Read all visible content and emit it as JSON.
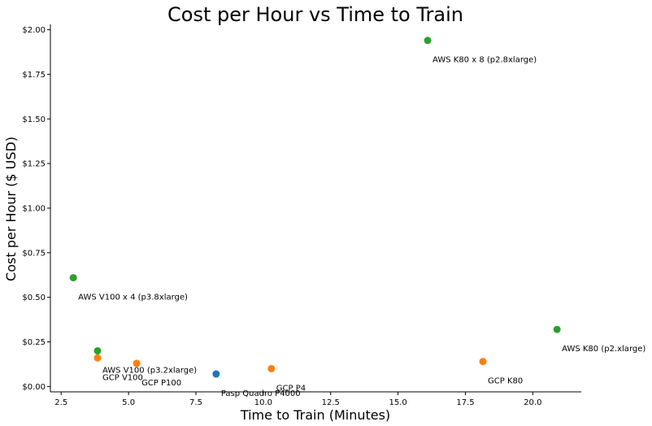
{
  "chart_data": {
    "type": "scatter",
    "title": "Cost per Hour vs Time to Train",
    "xlabel": "Time to Train (Minutes)",
    "ylabel": "Cost per Hour ($ USD)",
    "xlim": [
      2.1,
      21.8
    ],
    "ylim": [
      -0.03,
      2.03
    ],
    "x_ticks": [
      2.5,
      5.0,
      7.5,
      10.0,
      12.5,
      15.0,
      17.5,
      20.0
    ],
    "x_tick_labels": [
      "2.5",
      "5.0",
      "7.5",
      "10.0",
      "12.5",
      "15.0",
      "17.5",
      "20.0"
    ],
    "y_ticks": [
      0.0,
      0.25,
      0.5,
      0.75,
      1.0,
      1.25,
      1.5,
      1.75,
      2.0
    ],
    "y_tick_labels": [
      "$0.00",
      "$0.25",
      "$0.50",
      "$0.75",
      "$1.00",
      "$1.25",
      "$1.50",
      "$1.75",
      "$2.00"
    ],
    "grid": false,
    "colors": {
      "paperspace": "#1f77b4",
      "gcp": "#ff7f0e",
      "aws": "#2ca02c"
    },
    "points": [
      {
        "label": "Pasp Quadro P4000",
        "x": 8.25,
        "y": 0.07,
        "group": "paperspace"
      },
      {
        "label": "GCP V100",
        "x": 3.85,
        "y": 0.16,
        "group": "gcp"
      },
      {
        "label": "GCP P100",
        "x": 5.3,
        "y": 0.13,
        "group": "gcp"
      },
      {
        "label": "GCP P4",
        "x": 10.3,
        "y": 0.1,
        "group": "gcp"
      },
      {
        "label": "GCP K80",
        "x": 18.15,
        "y": 0.14,
        "group": "gcp"
      },
      {
        "label": "AWS V100 (p3.2xlarge)",
        "x": 3.85,
        "y": 0.2,
        "group": "aws"
      },
      {
        "label": "AWS V100 x 4 (p3.8xlarge)",
        "x": 2.95,
        "y": 0.61,
        "group": "aws"
      },
      {
        "label": "AWS K80 x 8 (p2.8xlarge)",
        "x": 16.1,
        "y": 1.94,
        "group": "aws"
      },
      {
        "label": "AWS K80 (p2.xlarge)",
        "x": 20.9,
        "y": 0.32,
        "group": "aws"
      }
    ]
  }
}
